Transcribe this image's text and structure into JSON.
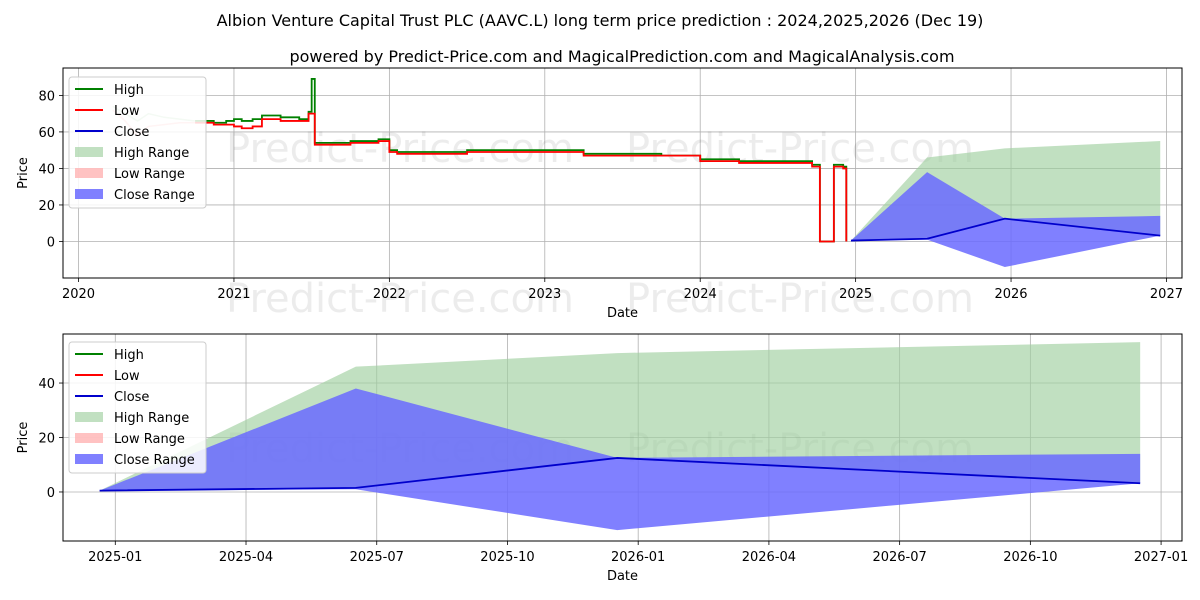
{
  "header": {
    "title": "Albion Venture Capital Trust PLC (AAVC.L) long term price prediction : 2024,2025,2026 (Dec 19)",
    "subtitle": "powered by Predict-Price.com and MagicalPrediction.com and MagicalAnalysis.com"
  },
  "watermark": "Predict-Price.com",
  "colors": {
    "high": "#008000",
    "low": "#ff0000",
    "close": "#0000cc",
    "high_range": "#9fd09f",
    "low_range": "#ffb3b3",
    "close_range": "#6a6aff",
    "grid": "#b0b0b0"
  },
  "legend": [
    {
      "key": "high",
      "label": "High"
    },
    {
      "key": "low",
      "label": "Low"
    },
    {
      "key": "close",
      "label": "Close"
    },
    {
      "key": "high_range",
      "label": "High Range"
    },
    {
      "key": "low_range",
      "label": "Low Range"
    },
    {
      "key": "close_range",
      "label": "Close Range"
    }
  ],
  "chart_data": [
    {
      "type": "line",
      "id": "overview",
      "xlabel": "Date",
      "ylabel": "Price",
      "xlim": [
        2019.9,
        2027.1
      ],
      "ylim": [
        -20,
        95
      ],
      "xticks": [
        {
          "v": 2020,
          "label": "2020"
        },
        {
          "v": 2021,
          "label": "2021"
        },
        {
          "v": 2022,
          "label": "2022"
        },
        {
          "v": 2023,
          "label": "2023"
        },
        {
          "v": 2024,
          "label": "2024"
        },
        {
          "v": 2025,
          "label": "2025"
        },
        {
          "v": 2026,
          "label": "2026"
        },
        {
          "v": 2027,
          "label": "2027"
        }
      ],
      "yticks": [
        {
          "v": 0,
          "label": "0"
        },
        {
          "v": 20,
          "label": "20"
        },
        {
          "v": 40,
          "label": "40"
        },
        {
          "v": 60,
          "label": "60"
        },
        {
          "v": 80,
          "label": "80"
        }
      ],
      "history": {
        "x": [
          2020.75,
          2020.87,
          2020.95,
          2021.0,
          2021.05,
          2021.12,
          2021.18,
          2021.3,
          2021.42,
          2021.48,
          2021.5,
          2021.52,
          2021.6,
          2021.75,
          2021.88,
          2021.93,
          2022.0,
          2022.05,
          2022.25,
          2022.5,
          2022.75,
          2023.0,
          2023.25,
          2023.5,
          2023.75,
          2023.95,
          2024.0,
          2024.25,
          2024.5,
          2024.72,
          2024.75,
          2024.77,
          2024.84,
          2024.86,
          2024.92,
          2024.94
        ],
        "low": [
          65,
          64,
          64,
          63,
          62,
          63,
          67,
          66,
          66,
          70,
          70,
          53,
          53,
          54,
          54,
          55,
          49,
          48,
          48,
          49,
          49,
          49,
          47,
          47,
          47,
          47,
          44,
          43,
          43,
          41,
          41,
          0,
          0,
          41,
          40,
          0
        ],
        "high": [
          66,
          65,
          66,
          67,
          66,
          67,
          69,
          68,
          67,
          71,
          89,
          54,
          54,
          55,
          55,
          56,
          50,
          49,
          49,
          50,
          50,
          50,
          48,
          48,
          47,
          47,
          45,
          44,
          44,
          42,
          42,
          0,
          0,
          42,
          41,
          0
        ]
      },
      "history_faint": {
        "x": [
          2020.22,
          2020.3,
          2020.38,
          2020.45,
          2020.55,
          2020.65,
          2020.75
        ],
        "low": [
          72,
          66,
          58,
          63,
          64,
          65,
          65
        ],
        "high": [
          74,
          70,
          66,
          70,
          68,
          67,
          66
        ]
      },
      "forecast": {
        "x": [
          2024.97,
          2025.46,
          2025.96,
          2026.96
        ],
        "close": [
          0.5,
          1.5,
          12.5,
          3.2
        ],
        "high_range_top": [
          0.5,
          46,
          51,
          55
        ],
        "close_range_top": [
          0.5,
          38,
          12.5,
          14
        ],
        "close_range_bottom": [
          0.5,
          1,
          -14,
          3.2
        ],
        "low_range_bottom": [
          0.5,
          1,
          -14,
          3.2
        ]
      }
    },
    {
      "type": "line",
      "id": "forecast_zoom",
      "xlabel": "Date",
      "ylabel": "Price",
      "xlim": [
        2024.9,
        2027.04
      ],
      "ylim": [
        -18,
        58
      ],
      "xticks": [
        {
          "v": 2025.0,
          "label": "2025-01"
        },
        {
          "v": 2025.25,
          "label": "2025-04"
        },
        {
          "v": 2025.5,
          "label": "2025-07"
        },
        {
          "v": 2025.75,
          "label": "2025-10"
        },
        {
          "v": 2026.0,
          "label": "2026-01"
        },
        {
          "v": 2026.25,
          "label": "2026-04"
        },
        {
          "v": 2026.5,
          "label": "2026-07"
        },
        {
          "v": 2026.75,
          "label": "2026-10"
        },
        {
          "v": 2027.0,
          "label": "2027-01"
        }
      ],
      "yticks": [
        {
          "v": 0,
          "label": "0"
        },
        {
          "v": 20,
          "label": "20"
        },
        {
          "v": 40,
          "label": "40"
        }
      ],
      "forecast": {
        "x": [
          2024.97,
          2025.46,
          2025.96,
          2026.96
        ],
        "close": [
          0.5,
          1.5,
          12.5,
          3.2
        ],
        "high_range_top": [
          0.5,
          46,
          51,
          55
        ],
        "close_range_top": [
          0.5,
          38,
          12.5,
          14
        ],
        "close_range_bottom": [
          0.5,
          1,
          -14,
          3.2
        ],
        "low_range_bottom": [
          0.5,
          1,
          -14,
          3.2
        ]
      }
    }
  ]
}
